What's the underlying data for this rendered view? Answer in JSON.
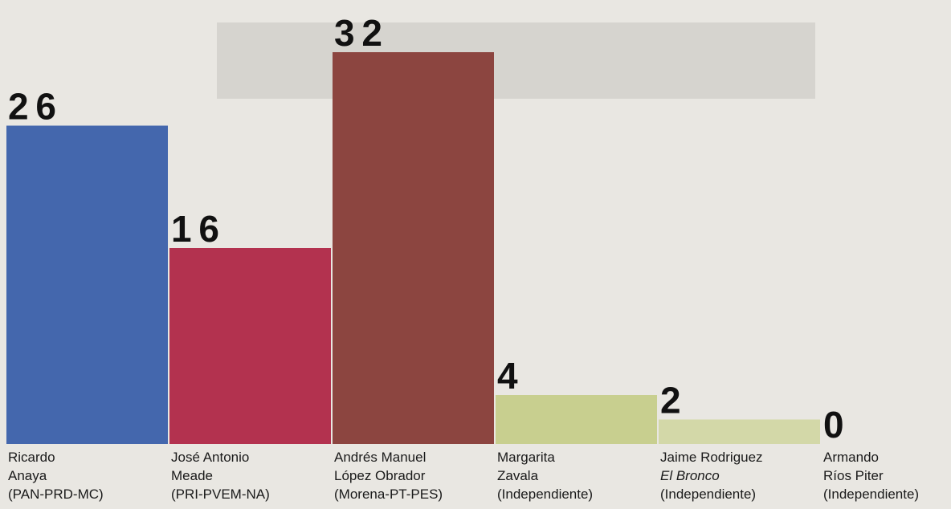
{
  "chart_data": {
    "type": "bar",
    "categories": [
      [
        "Ricardo",
        "Anaya",
        "(PAN-PRD-MC)"
      ],
      [
        "José Antonio",
        "Meade",
        "(PRI-PVEM-NA)"
      ],
      [
        "Andrés Manuel",
        "López Obrador",
        "(Morena-PT-PES)"
      ],
      [
        "Margarita",
        "Zavala",
        "(Independiente)"
      ],
      [
        "Jaime Rodriguez",
        "El Bronco",
        "(Independiente)"
      ],
      [
        "Armando",
        "Ríos Piter",
        "(Independiente)"
      ]
    ],
    "values": [
      26,
      16,
      32,
      4,
      2,
      0
    ],
    "colors": [
      "#4467ad",
      "#b3324f",
      "#8c4540",
      "#c8cf8f",
      "#d3d8a8",
      "#d8dcb2"
    ]
  }
}
